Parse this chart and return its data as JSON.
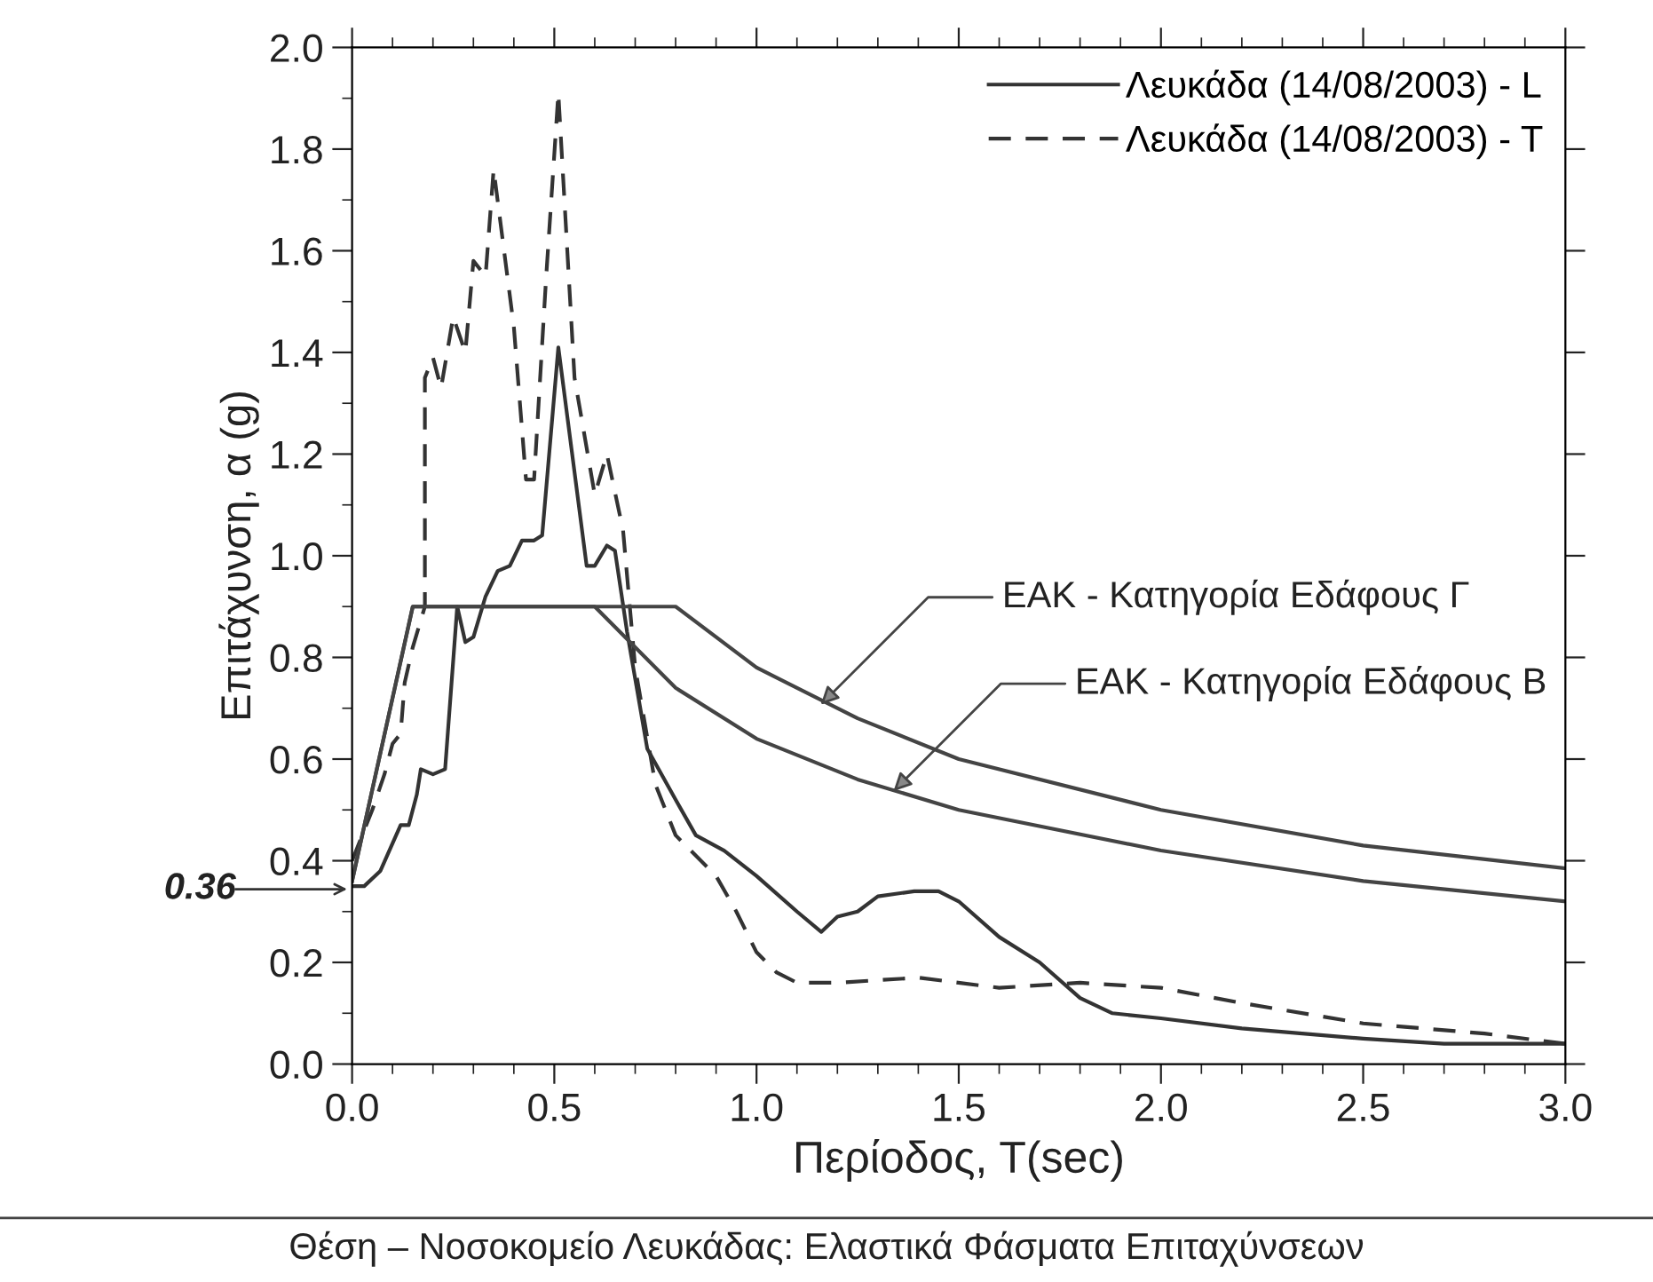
{
  "chart_data": {
    "type": "line",
    "xlabel": "Περίοδος, T(sec)",
    "ylabel": "Επιτάχυνση, α (g)",
    "xlim": [
      0,
      3
    ],
    "ylim": [
      0,
      2
    ],
    "xticks": [
      {
        "value": 0,
        "label": "0.0"
      },
      {
        "value": 0.5,
        "label": "0.5"
      },
      {
        "value": 1,
        "label": "1.0"
      },
      {
        "value": 1.5,
        "label": "1.5"
      },
      {
        "value": 2,
        "label": "2.0"
      },
      {
        "value": 2.5,
        "label": "2.5"
      },
      {
        "value": 3,
        "label": "3.0"
      }
    ],
    "yticks": [
      {
        "value": 0,
        "label": "0.0"
      },
      {
        "value": 0.2,
        "label": "0.2"
      },
      {
        "value": 0.4,
        "label": "0.4"
      },
      {
        "value": 0.6,
        "label": "0.6"
      },
      {
        "value": 0.8,
        "label": "0.8"
      },
      {
        "value": 1,
        "label": "1.0"
      },
      {
        "value": 1.2,
        "label": "1.2"
      },
      {
        "value": 1.4,
        "label": "1.4"
      },
      {
        "value": 1.6,
        "label": "1.6"
      },
      {
        "value": 1.8,
        "label": "1.8"
      },
      {
        "value": 2,
        "label": "2.0"
      }
    ],
    "grid": false,
    "legend": "top right",
    "marker": "none",
    "series": [
      {
        "name": "Λευκάδα (14/08/2003) - L",
        "color": "#333333",
        "line_style": "solid",
        "x": [
          0,
          0.03,
          0.07,
          0.12,
          0.14,
          0.16,
          0.17,
          0.2,
          0.23,
          0.26,
          0.28,
          0.3,
          0.33,
          0.36,
          0.39,
          0.42,
          0.45,
          0.47,
          0.51,
          0.58,
          0.6,
          0.63,
          0.65,
          0.68,
          0.73,
          0.8,
          0.85,
          0.92,
          1.0,
          1.1,
          1.16,
          1.2,
          1.25,
          1.3,
          1.39,
          1.45,
          1.5,
          1.6,
          1.7,
          1.8,
          1.88,
          2.0,
          2.2,
          2.5,
          2.7,
          3.0
        ],
        "values": [
          0.35,
          0.35,
          0.38,
          0.47,
          0.47,
          0.53,
          0.58,
          0.57,
          0.58,
          0.9,
          0.83,
          0.84,
          0.92,
          0.97,
          0.98,
          1.03,
          1.03,
          1.04,
          1.41,
          0.98,
          0.98,
          1.02,
          1.01,
          0.85,
          0.62,
          0.52,
          0.45,
          0.42,
          0.37,
          0.3,
          0.26,
          0.29,
          0.3,
          0.33,
          0.34,
          0.34,
          0.32,
          0.25,
          0.2,
          0.13,
          0.1,
          0.09,
          0.07,
          0.05,
          0.04,
          0.04
        ]
      },
      {
        "name": "Λευκάδα (14/08/2003) - T",
        "color": "#333333",
        "line_style": "dashed",
        "x": [
          0,
          0.05,
          0.08,
          0.1,
          0.12,
          0.13,
          0.15,
          0.18,
          0.18,
          0.2,
          0.22,
          0.25,
          0.28,
          0.3,
          0.33,
          0.35,
          0.4,
          0.43,
          0.45,
          0.48,
          0.51,
          0.55,
          0.6,
          0.63,
          0.67,
          0.7,
          0.75,
          0.8,
          0.9,
          0.95,
          1.0,
          1.05,
          1.1,
          1.2,
          1.4,
          1.6,
          1.8,
          2.0,
          2.2,
          2.5,
          2.8,
          3.0
        ],
        "values": [
          0.4,
          0.5,
          0.57,
          0.63,
          0.65,
          0.75,
          0.82,
          0.9,
          1.35,
          1.39,
          1.33,
          1.47,
          1.4,
          1.58,
          1.55,
          1.76,
          1.45,
          1.15,
          1.15,
          1.55,
          1.91,
          1.35,
          1.12,
          1.2,
          1.05,
          0.78,
          0.55,
          0.45,
          0.37,
          0.3,
          0.22,
          0.18,
          0.16,
          0.16,
          0.17,
          0.15,
          0.16,
          0.15,
          0.12,
          0.08,
          0.06,
          0.04
        ]
      },
      {
        "color": "#444444",
        "line_style": "solid",
        "x": [
          0,
          0.15,
          0.6,
          0.8,
          1.0,
          1.25,
          1.5,
          2.0,
          2.5,
          3.0
        ],
        "values": [
          0.36,
          0.9,
          0.9,
          0.74,
          0.64,
          0.56,
          0.5,
          0.42,
          0.36,
          0.32
        ]
      },
      {
        "color": "#444444",
        "line_style": "solid",
        "x": [
          0,
          0.15,
          0.8,
          1.0,
          1.25,
          1.5,
          2.0,
          2.5,
          3.0
        ],
        "values": [
          0.36,
          0.9,
          0.9,
          0.78,
          0.68,
          0.6,
          0.5,
          0.43,
          0.385
        ]
      }
    ],
    "annotations": [
      "0.36",
      {
        "text": "ΕΑΚ - Κατηγορία Εδάφους Γ",
        "x": 1.15,
        "y": 0.7
      },
      {
        "text": "ΕΑΚ - Κατηγορία Εδάφους Β",
        "x": 1.33,
        "y": 0.53
      },
      "Θέση – Νοσοκομείο Λευκάδας: Ελαστικά Φάσματα Επιταχύνσεων"
    ]
  }
}
